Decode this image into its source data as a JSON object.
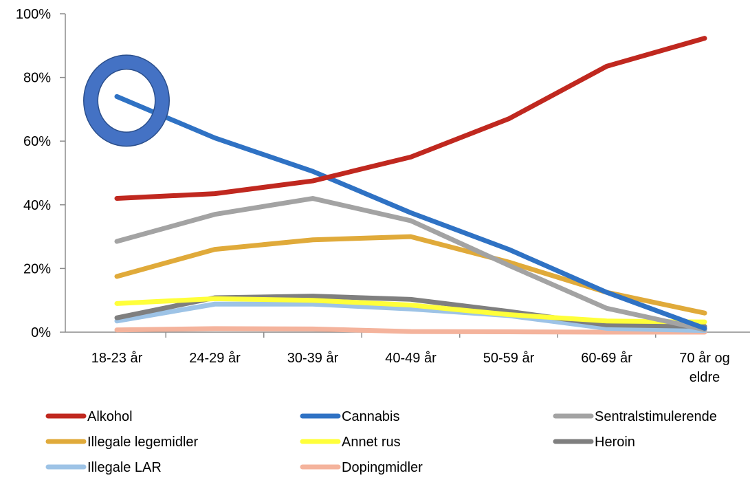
{
  "chart_data": {
    "type": "line",
    "title": "",
    "xlabel": "",
    "ylabel": "",
    "ylim": [
      0,
      100
    ],
    "y_ticks": [
      0,
      20,
      40,
      60,
      80,
      100
    ],
    "y_tick_labels": [
      "0%",
      "20%",
      "40%",
      "60%",
      "80%",
      "100%"
    ],
    "grid": false,
    "legend_position": "bottom",
    "categories": [
      "18-23 år",
      "24-29 år",
      "30-39 år",
      "40-49 år",
      "50-59 år",
      "60-69 år",
      "70 år og eldre"
    ],
    "category_lines": [
      [
        "18-23 år"
      ],
      [
        "24-29 år"
      ],
      [
        "30-39 år"
      ],
      [
        "40-49 år"
      ],
      [
        "50-59 år"
      ],
      [
        "60-69 år"
      ],
      [
        "70 år og",
        "eldre"
      ]
    ],
    "series": [
      {
        "name": "Alkohol",
        "color": "#c0281f",
        "values": [
          42,
          43.5,
          47.5,
          55,
          67,
          83.5,
          92.3
        ]
      },
      {
        "name": "Cannabis",
        "color": "#2f72c4",
        "values": [
          74,
          61,
          50.5,
          37.5,
          26,
          12.5,
          1.2
        ]
      },
      {
        "name": "Sentralstimulerende",
        "color": "#a3a3a3",
        "values": [
          28.5,
          37,
          42,
          35,
          21,
          7.5,
          0.8
        ]
      },
      {
        "name": "Illegale legemidler",
        "color": "#e0aa3a",
        "values": [
          17.5,
          26,
          29,
          30,
          22,
          12.5,
          6
        ]
      },
      {
        "name": "Annet  rus",
        "color": "#ffff3a",
        "values": [
          9,
          10.5,
          10,
          8.5,
          5.5,
          3.5,
          3.2
        ]
      },
      {
        "name": "Heroin",
        "color": "#7f7f7f",
        "values": [
          4.5,
          10.8,
          11.3,
          10.3,
          6.5,
          2.3,
          1.8
        ]
      },
      {
        "name": "Illegale  LAR",
        "color": "#9dc3e6",
        "values": [
          3.5,
          8.8,
          8.8,
          7.3,
          5.2,
          1.2,
          0.5
        ]
      },
      {
        "name": "Dopingmidler",
        "color": "#f4b39c",
        "values": [
          0.7,
          1.1,
          1,
          0.2,
          0.1,
          0,
          0
        ]
      }
    ],
    "annotation": {
      "type": "ellipse",
      "series": "Cannabis",
      "category": "18-23 år",
      "color": "#4472c4"
    }
  }
}
